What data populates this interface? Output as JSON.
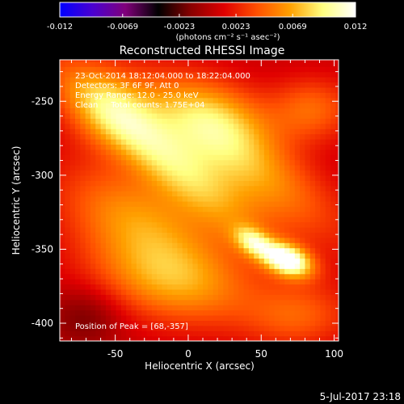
{
  "chart_data": {
    "type": "heatmap",
    "title": "Reconstructed RHESSI Image",
    "xlabel": "Heliocentric X (arcsec)",
    "ylabel": "Heliocentric Y (arcsec)",
    "xlim": [
      -88,
      103
    ],
    "ylim": [
      -412,
      -222
    ],
    "x_ticks": [
      "-50",
      "0",
      "50",
      "100"
    ],
    "x_tick_values": [
      -50,
      0,
      50,
      100
    ],
    "y_ticks": [
      "-250",
      "-300",
      "-350",
      "-400"
    ],
    "y_tick_values": [
      -250,
      -300,
      -350,
      -400
    ],
    "colorbar": {
      "range": [
        -0.012,
        0.012
      ],
      "tick_labels": [
        "-0.012",
        "-0.0069",
        "-0.0023",
        "0.0023",
        "0.0069",
        "0.012"
      ],
      "tick_values": [
        -0.012,
        -0.0069,
        -0.0023,
        0.0023,
        0.0069,
        0.012
      ],
      "unit_label": "(photons cm⁻² s⁻¹ asec⁻²)",
      "colors": [
        "#0000ff",
        "#4a00d0",
        "#80007a",
        "#000000",
        "#8a0000",
        "#e00000",
        "#ff5000",
        "#ffa000",
        "#ffff80",
        "#ffffff"
      ]
    },
    "annotations": [
      "23-Oct-2014 18:12:04.000 to 18:22:04.000",
      "Detectors: 3F 6F 9F, Att 0",
      "Energy Range: 12.0 - 25.0 keV",
      "Clean     Total counts: 1.75E+04"
    ],
    "peak_label": "Position of Peak = [68,-357]",
    "peak": {
      "x": 68,
      "y": -357,
      "value": 0.012
    },
    "sources": [
      {
        "x": 68,
        "y": -357,
        "amplitude": 0.0115,
        "sigma_major": 12,
        "sigma_minor": 7,
        "angle_deg": -20
      },
      {
        "x": 45,
        "y": -345,
        "amplitude": 0.0065,
        "sigma_major": 10,
        "sigma_minor": 6,
        "angle_deg": -30
      },
      {
        "x": 35,
        "y": -290,
        "amplitude": 0.006,
        "sigma_major": 55,
        "sigma_minor": 18,
        "angle_deg": -35
      },
      {
        "x": -20,
        "y": -285,
        "amplitude": 0.0065,
        "sigma_major": 60,
        "sigma_minor": 14,
        "angle_deg": -40
      },
      {
        "x": -35,
        "y": -330,
        "amplitude": 0.0055,
        "sigma_major": 40,
        "sigma_minor": 22,
        "angle_deg": -25
      },
      {
        "x": 20,
        "y": -260,
        "amplitude": 0.005,
        "sigma_major": 30,
        "sigma_minor": 18,
        "angle_deg": -20
      },
      {
        "x": -10,
        "y": -372,
        "amplitude": 0.0055,
        "sigma_major": 40,
        "sigma_minor": 20,
        "angle_deg": -10
      },
      {
        "x": -55,
        "y": -255,
        "amplitude": 0.004,
        "sigma_major": 25,
        "sigma_minor": 18,
        "angle_deg": -30
      },
      {
        "x": 85,
        "y": -255,
        "amplitude": 0.004,
        "sigma_major": 20,
        "sigma_minor": 15,
        "angle_deg": 0
      },
      {
        "x": 75,
        "y": -395,
        "amplitude": 0.0035,
        "sigma_major": 25,
        "sigma_minor": 15,
        "angle_deg": 0
      },
      {
        "x": -70,
        "y": -395,
        "amplitude": -0.0025,
        "sigma_major": 18,
        "sigma_minor": 15,
        "angle_deg": 0
      }
    ]
  },
  "footer": {
    "date": "5-Jul-2017 23:18"
  }
}
